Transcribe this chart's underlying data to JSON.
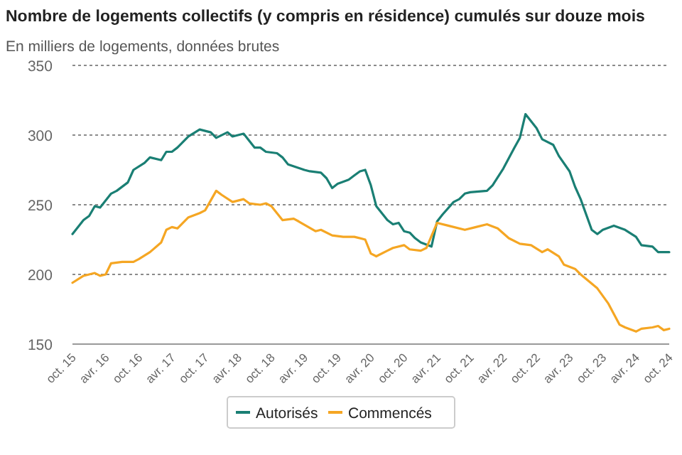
{
  "chart_data": {
    "type": "line",
    "title": "Nombre de logements collectifs (y compris en résidence) cumulés sur douze mois",
    "subtitle": "En milliers de logements, données brutes",
    "xlim": [
      "2015-10",
      "2024-10"
    ],
    "xticks": [
      {
        "value": "2015-10",
        "label": "oct. 15"
      },
      {
        "value": "2016-04",
        "label": "avr. 16"
      },
      {
        "value": "2016-10",
        "label": "oct. 16"
      },
      {
        "value": "2017-04",
        "label": "avr. 17"
      },
      {
        "value": "2017-10",
        "label": "oct. 17"
      },
      {
        "value": "2018-04",
        "label": "avr. 18"
      },
      {
        "value": "2018-10",
        "label": "oct. 18"
      },
      {
        "value": "2019-04",
        "label": "avr. 19"
      },
      {
        "value": "2019-10",
        "label": "oct. 19"
      },
      {
        "value": "2020-04",
        "label": "avr. 20"
      },
      {
        "value": "2020-10",
        "label": "oct. 20"
      },
      {
        "value": "2021-04",
        "label": "avr. 21"
      },
      {
        "value": "2021-10",
        "label": "oct. 21"
      },
      {
        "value": "2022-04",
        "label": "avr. 22"
      },
      {
        "value": "2022-10",
        "label": "oct. 22"
      },
      {
        "value": "2023-04",
        "label": "avr. 23"
      },
      {
        "value": "2023-10",
        "label": "oct. 23"
      },
      {
        "value": "2024-04",
        "label": "avr. 24"
      },
      {
        "value": "2024-10",
        "label": "oct. 24"
      }
    ],
    "ylim": [
      150,
      350
    ],
    "yticks": [
      150,
      200,
      250,
      300,
      350
    ],
    "grid": "y",
    "legend": "bottom",
    "series": [
      {
        "name": "Autorisés",
        "color": "#1a7f74",
        "x": [
          "2015-10",
          "2015-12",
          "2016-01",
          "2016-02",
          "2016-03",
          "2016-05",
          "2016-06",
          "2016-08",
          "2016-09",
          "2016-11",
          "2016-12",
          "2017-02",
          "2017-03",
          "2017-04",
          "2017-05",
          "2017-07",
          "2017-09",
          "2017-11",
          "2017-12",
          "2018-02",
          "2018-03",
          "2018-05",
          "2018-07",
          "2018-08",
          "2018-09",
          "2018-11",
          "2018-12",
          "2019-01",
          "2019-04",
          "2019-05",
          "2019-07",
          "2019-08",
          "2019-09",
          "2019-10",
          "2019-12",
          "2020-01",
          "2020-02",
          "2020-03",
          "2020-04",
          "2020-05",
          "2020-07",
          "2020-08",
          "2020-09",
          "2020-10",
          "2020-11",
          "2020-12",
          "2021-01",
          "2021-03",
          "2021-04",
          "2021-05",
          "2021-07",
          "2021-08",
          "2021-09",
          "2021-10",
          "2022-01",
          "2022-02",
          "2022-04",
          "2022-06",
          "2022-07",
          "2022-08",
          "2022-10",
          "2022-11",
          "2023-01",
          "2023-02",
          "2023-04",
          "2023-05",
          "2023-06",
          "2023-08",
          "2023-09",
          "2023-10",
          "2023-12",
          "2024-02",
          "2024-04",
          "2024-05",
          "2024-07",
          "2024-08",
          "2024-10"
        ],
        "values": [
          229,
          239,
          242,
          249,
          248,
          258,
          260,
          266,
          275,
          280,
          284,
          282,
          288,
          288,
          291,
          299,
          304,
          302,
          298,
          302,
          299,
          301,
          291,
          291,
          288,
          287,
          284,
          279,
          275,
          274,
          273,
          269,
          262,
          265,
          268,
          271,
          274,
          275,
          264,
          249,
          239,
          236,
          237,
          231,
          230,
          226,
          223,
          220,
          238,
          243,
          252,
          254,
          258,
          259,
          260,
          264,
          276,
          291,
          298,
          315,
          305,
          297,
          293,
          285,
          274,
          263,
          254,
          232,
          229,
          232,
          235,
          232,
          227,
          221,
          220,
          216,
          216
        ]
      },
      {
        "name": "Commencés",
        "color": "#f5a623",
        "x": [
          "2015-10",
          "2015-12",
          "2016-02",
          "2016-03",
          "2016-04",
          "2016-05",
          "2016-07",
          "2016-09",
          "2016-10",
          "2016-12",
          "2017-02",
          "2017-03",
          "2017-04",
          "2017-05",
          "2017-07",
          "2017-09",
          "2017-10",
          "2017-12",
          "2018-01",
          "2018-03",
          "2018-05",
          "2018-06",
          "2018-08",
          "2018-09",
          "2018-10",
          "2018-12",
          "2019-02",
          "2019-03",
          "2019-06",
          "2019-07",
          "2019-09",
          "2019-11",
          "2020-01",
          "2020-03",
          "2020-04",
          "2020-05",
          "2020-07",
          "2020-08",
          "2020-10",
          "2020-11",
          "2021-01",
          "2021-02",
          "2021-04",
          "2021-06",
          "2021-09",
          "2021-11",
          "2022-01",
          "2022-03",
          "2022-05",
          "2022-07",
          "2022-09",
          "2022-11",
          "2022-12",
          "2023-02",
          "2023-03",
          "2023-05",
          "2023-06",
          "2023-09",
          "2023-11",
          "2024-01",
          "2024-02",
          "2024-04",
          "2024-05",
          "2024-07",
          "2024-08",
          "2024-09",
          "2024-10"
        ],
        "values": [
          194,
          199,
          201,
          199,
          200,
          208,
          209,
          209,
          211,
          216,
          223,
          232,
          234,
          233,
          241,
          244,
          246,
          260,
          257,
          252,
          254,
          251,
          250,
          251,
          249,
          239,
          240,
          238,
          231,
          232,
          228,
          227,
          227,
          225,
          215,
          213,
          217,
          219,
          221,
          218,
          217,
          219,
          237,
          235,
          232,
          234,
          236,
          233,
          226,
          222,
          221,
          216,
          218,
          213,
          207,
          204,
          200,
          190,
          179,
          164,
          162,
          159,
          161,
          162,
          163,
          160,
          161
        ]
      }
    ]
  }
}
